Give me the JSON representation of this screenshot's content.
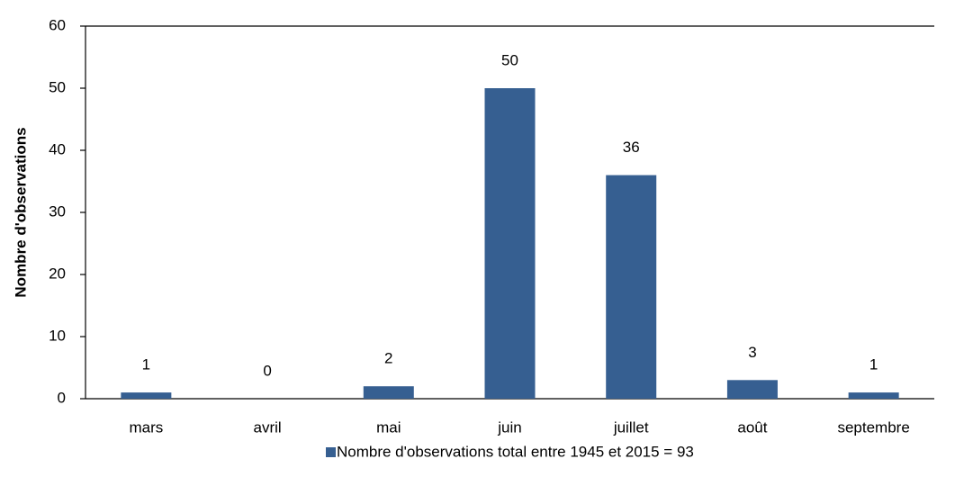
{
  "chart_data": {
    "type": "bar",
    "y_label": "Nombre d'observations",
    "categories": [
      "mars",
      "avril",
      "mai",
      "juin",
      "juillet",
      "août",
      "septembre"
    ],
    "series": [
      {
        "name": "Nombre d'observations total entre 1945 et 2015 = 93",
        "color": "#365f91",
        "values": [
          1,
          0,
          2,
          50,
          36,
          3,
          1
        ]
      }
    ],
    "ylim": [
      0,
      60
    ],
    "yticks": [
      0,
      10,
      20,
      30,
      40,
      50,
      60
    ],
    "grid": false,
    "legend": "bottom"
  }
}
